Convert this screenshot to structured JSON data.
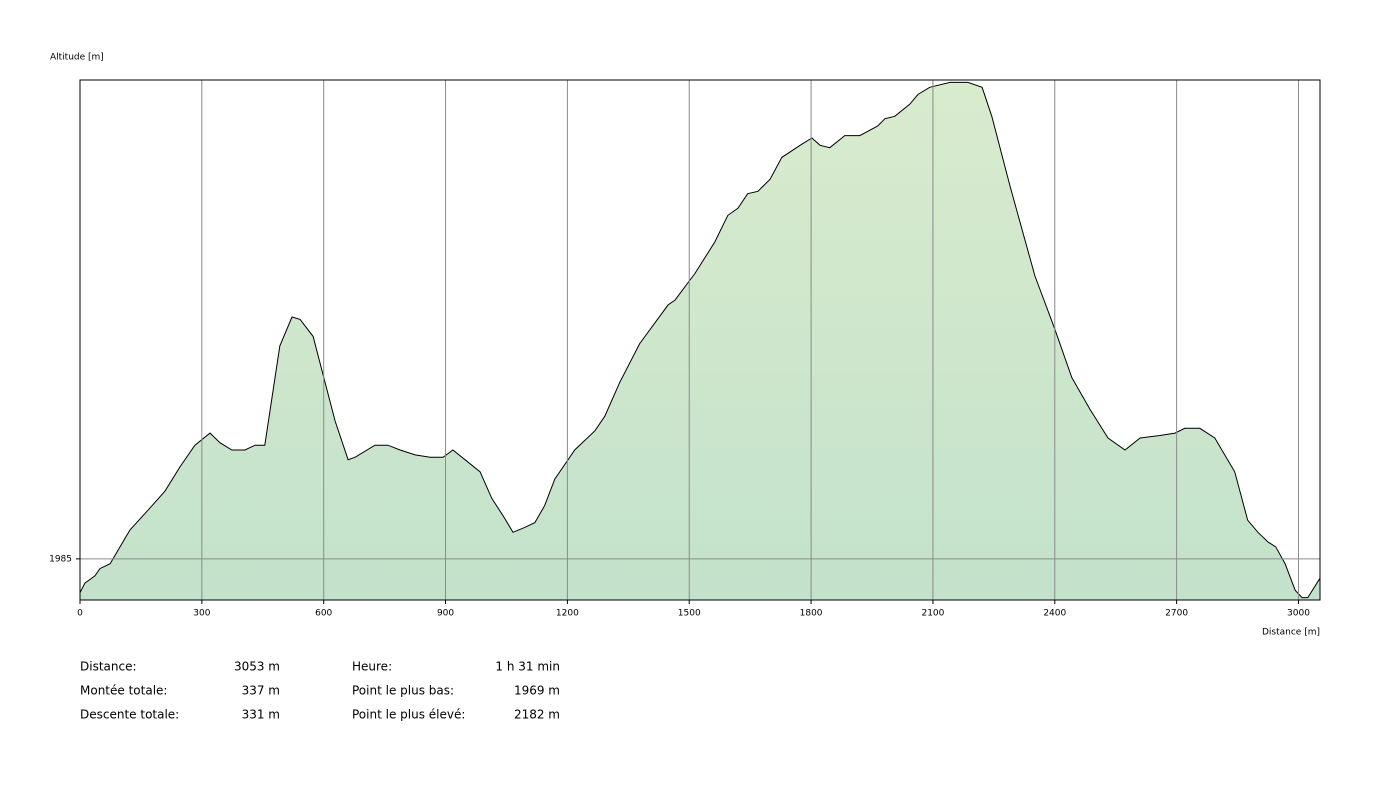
{
  "chart_data": {
    "type": "area",
    "ylabel": "Altitude [m]",
    "xlabel": "Distance [m]",
    "x": [
      0,
      12,
      37,
      49,
      74,
      123,
      172,
      209,
      246,
      283,
      320,
      345,
      374,
      406,
      431,
      455,
      492,
      522,
      542,
      574,
      628,
      660,
      677,
      726,
      758,
      788,
      825,
      862,
      894,
      918,
      948,
      985,
      1014,
      1041,
      1066,
      1095,
      1120,
      1144,
      1169,
      1218,
      1268,
      1292,
      1329,
      1378,
      1448,
      1465,
      1514,
      1563,
      1595,
      1620,
      1644,
      1669,
      1699,
      1728,
      1773,
      1802,
      1822,
      1846,
      1883,
      1920,
      1964,
      1982,
      2006,
      2043,
      2063,
      2092,
      2142,
      2186,
      2221,
      2245,
      2290,
      2351,
      2400,
      2442,
      2486,
      2531,
      2573,
      2610,
      2659,
      2696,
      2720,
      2757,
      2794,
      2843,
      2875,
      2900,
      2925,
      2944,
      2967,
      2992,
      3009,
      3023,
      3053
    ],
    "values": [
      1971,
      1975,
      1978,
      1981,
      1983,
      1997,
      2006,
      2013,
      2023,
      2032,
      2037,
      2033,
      2030,
      2030,
      2032,
      2032,
      2073,
      2085,
      2084,
      2077,
      2042,
      2026,
      2027,
      2032,
      2032,
      2030,
      2028,
      2027,
      2027,
      2030,
      2026,
      2021,
      2010,
      2003,
      1996,
      1998,
      2000,
      2007,
      2018,
      2030,
      2038,
      2044,
      2058,
      2074,
      2090,
      2092,
      2103,
      2116,
      2127,
      2130,
      2136,
      2137,
      2142,
      2151,
      2156,
      2159,
      2156,
      2155,
      2160,
      2160,
      2164,
      2167,
      2168,
      2173,
      2177,
      2180,
      2182,
      2182,
      2180,
      2168,
      2139,
      2102,
      2080,
      2060,
      2047,
      2035,
      2030,
      2035,
      2036,
      2037,
      2039,
      2039,
      2035,
      2021,
      2001,
      1996,
      1992,
      1990,
      1983,
      1972,
      1969,
      1969,
      1977
    ],
    "xlim": [
      0,
      3053
    ],
    "ylim": [
      1968,
      2183
    ],
    "xticks": [
      0,
      300,
      600,
      900,
      1200,
      1500,
      1800,
      2100,
      2400,
      2700,
      3000
    ],
    "yticks": [
      1985
    ],
    "grid": true,
    "color": "#000000"
  },
  "stats": [
    {
      "label": "Distance:",
      "value": "3053 m"
    },
    {
      "label": "Montée totale:",
      "value": "337 m"
    },
    {
      "label": "Descente totale:",
      "value": "331 m"
    },
    {
      "label": "Heure:",
      "value": "1 h 31 min"
    },
    {
      "label": "Point le plus bas:",
      "value": "1969 m"
    },
    {
      "label": "Point le plus élevé:",
      "value": "2182 m"
    }
  ]
}
